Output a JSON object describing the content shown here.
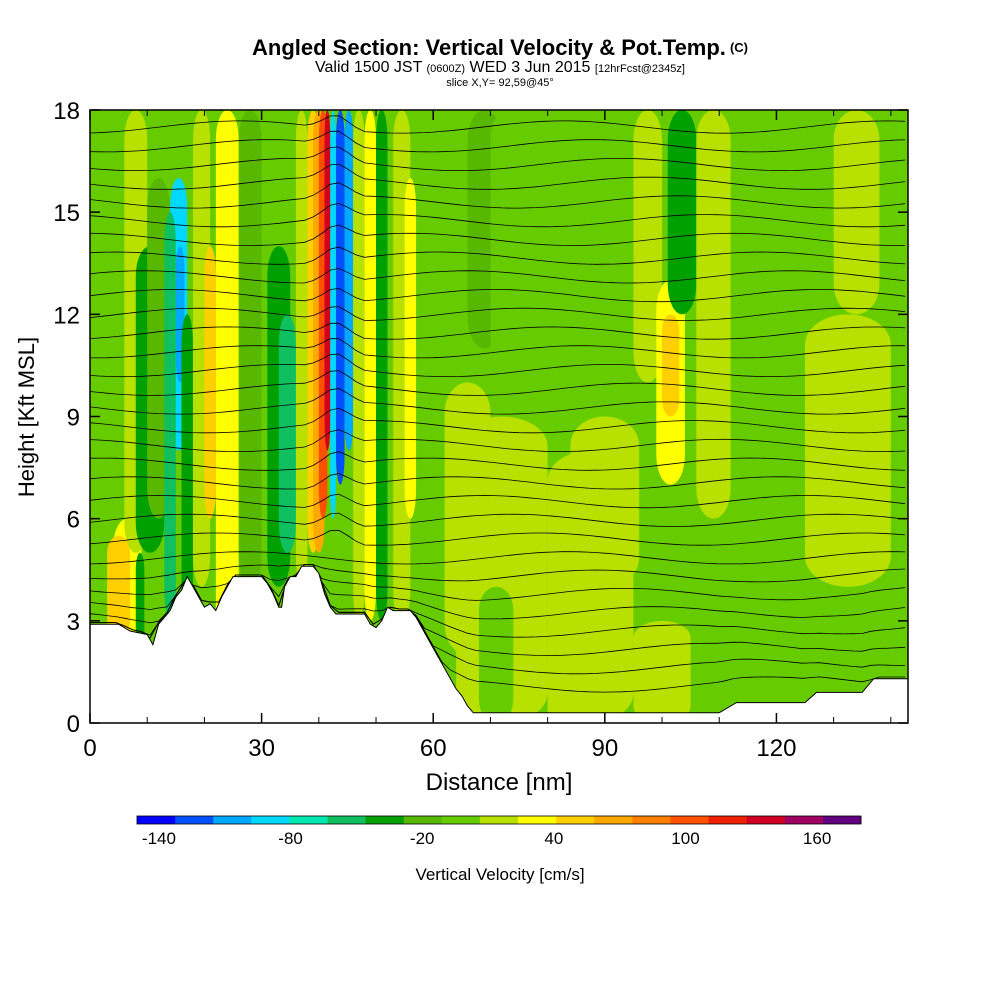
{
  "title": {
    "main": "Angled Section: Vertical Velocity & Pot.Temp.",
    "unit": "(C)",
    "line2_a": "Valid 1500 JST",
    "line2_b": "(0600Z)",
    "line2_c": "WED 3 Jun 2015",
    "line2_d": "[12hrFcst@2345z]",
    "line3": "slice X,Y= 92,59@45°"
  },
  "chart_data": {
    "type": "heatmap",
    "xlabel": "Distance [nm]",
    "ylabel": "Height [Kft MSL]",
    "xlim": [
      0,
      143
    ],
    "ylim": [
      0,
      18
    ],
    "xticks": [
      "0",
      "30",
      "60",
      "90",
      "120"
    ],
    "xtick_values": [
      0,
      30,
      60,
      90,
      120
    ],
    "yticks": [
      "0",
      "3",
      "6",
      "9",
      "12",
      "15",
      "18"
    ],
    "ytick_values": [
      0,
      3,
      6,
      9,
      12,
      15,
      18
    ],
    "colorbar": {
      "label": "Vertical Velocity [cm/s]",
      "tick_labels": [
        "-140",
        "-80",
        "-20",
        "40",
        "100",
        "160"
      ],
      "tick_values": [
        -140,
        -80,
        -20,
        40,
        100,
        160
      ],
      "range": [
        -150,
        180
      ],
      "colors": [
        "#0000ff",
        "#0050ff",
        "#00a8ff",
        "#00d8ff",
        "#00e8b0",
        "#10c060",
        "#00a000",
        "#58b800",
        "#66cc00",
        "#b8e000",
        "#ffff00",
        "#ffd000",
        "#ffa800",
        "#ff8000",
        "#ff5000",
        "#f02000",
        "#d00020",
        "#a00060",
        "#600080"
      ]
    },
    "terrain_profile": {
      "distance": [
        0,
        5,
        7,
        10,
        11,
        12,
        13,
        14,
        15,
        16,
        17,
        18,
        19,
        20,
        21,
        22,
        23,
        24,
        25,
        26,
        27,
        28,
        29,
        30,
        31,
        32,
        33,
        33.5,
        34,
        35,
        36,
        37,
        38,
        39,
        40,
        41,
        42,
        43,
        44,
        45,
        46,
        47,
        48,
        49,
        50,
        51,
        52,
        53,
        54,
        55,
        56,
        57,
        58,
        59,
        60,
        61,
        62,
        63,
        64,
        65,
        66,
        67,
        68,
        70,
        75,
        80,
        85,
        90,
        95,
        100,
        105,
        110,
        113,
        115,
        120,
        125,
        127,
        130,
        135,
        137,
        140,
        143
      ],
      "height": [
        2.9,
        2.9,
        2.7,
        2.6,
        2.3,
        2.9,
        3.1,
        3.3,
        3.7,
        3.9,
        4.3,
        4.0,
        3.7,
        3.4,
        3.5,
        3.3,
        3.7,
        4.0,
        4.3,
        4.3,
        4.3,
        4.3,
        4.3,
        4.3,
        4.1,
        3.8,
        3.4,
        3.4,
        4.0,
        4.3,
        4.3,
        4.6,
        4.6,
        4.6,
        4.4,
        3.8,
        3.4,
        3.2,
        3.2,
        3.2,
        3.2,
        3.2,
        3.2,
        2.9,
        2.8,
        3.0,
        3.4,
        3.3,
        3.3,
        3.3,
        3.3,
        3.1,
        2.8,
        2.5,
        2.2,
        1.9,
        1.6,
        1.3,
        1.0,
        0.8,
        0.5,
        0.3,
        0.3,
        0.3,
        0.3,
        0.3,
        0.3,
        0.3,
        0.3,
        0.3,
        0.3,
        0.3,
        0.6,
        0.6,
        0.6,
        0.6,
        0.9,
        0.9,
        0.9,
        1.3,
        1.3,
        1.3
      ]
    },
    "potential_temperature_label": "(C)"
  },
  "colors": {
    "background": "#ffffff",
    "base_field": "#66cc00",
    "plot_frame": "#000000",
    "terrain": "#ffffff"
  }
}
